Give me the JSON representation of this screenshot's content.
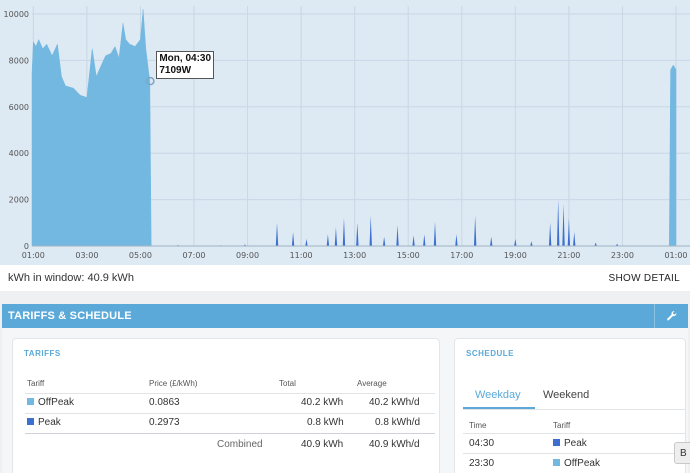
{
  "chart_data": {
    "type": "area",
    "title": "",
    "xlabel": "",
    "ylabel": "",
    "ylim": [
      0,
      10000
    ],
    "y_ticks": [
      "0",
      "2000",
      "4000",
      "6000",
      "8000",
      "10000"
    ],
    "x_ticks": [
      "01:00",
      "03:00",
      "05:00",
      "07:00",
      "09:00",
      "11:00",
      "13:00",
      "15:00",
      "17:00",
      "19:00",
      "21:00",
      "23:00",
      "01:00"
    ],
    "x_start_hour": 0.0,
    "x_end_hour": 25.0,
    "series": [
      {
        "color_offpeak": "#73b8e0",
        "color_peak": "#3d6fd0",
        "points": [
          [
            0.95,
            7400
          ],
          [
            1.0,
            8800
          ],
          [
            1.1,
            8600
          ],
          [
            1.2,
            8900
          ],
          [
            1.35,
            8500
          ],
          [
            1.5,
            8700
          ],
          [
            1.7,
            8200
          ],
          [
            1.9,
            8700
          ],
          [
            2.05,
            7300
          ],
          [
            2.2,
            6900
          ],
          [
            2.5,
            6800
          ],
          [
            2.75,
            6500
          ],
          [
            3.0,
            6400
          ],
          [
            3.2,
            8500
          ],
          [
            3.35,
            7300
          ],
          [
            3.5,
            7700
          ],
          [
            3.7,
            8200
          ],
          [
            3.9,
            8300
          ],
          [
            4.05,
            8600
          ],
          [
            4.2,
            8100
          ],
          [
            4.35,
            9600
          ],
          [
            4.45,
            8900
          ],
          [
            4.6,
            8700
          ],
          [
            4.8,
            8600
          ],
          [
            5.0,
            8900
          ],
          [
            5.1,
            10200
          ],
          [
            5.2,
            8500
          ],
          [
            5.35,
            7100
          ],
          [
            5.4,
            0
          ]
        ],
        "spikes_peak": [
          [
            6.4,
            50
          ],
          [
            8.0,
            40
          ],
          [
            8.9,
            70
          ],
          [
            10.1,
            1000
          ],
          [
            10.7,
            600
          ],
          [
            11.2,
            300
          ],
          [
            12.0,
            500
          ],
          [
            12.3,
            800
          ],
          [
            12.6,
            1200
          ],
          [
            13.1,
            1000
          ],
          [
            13.6,
            1300
          ],
          [
            14.1,
            400
          ],
          [
            14.6,
            900
          ],
          [
            15.2,
            450
          ],
          [
            15.6,
            500
          ],
          [
            16.0,
            1050
          ],
          [
            16.8,
            500
          ],
          [
            17.5,
            1300
          ],
          [
            18.1,
            400
          ],
          [
            19.0,
            300
          ],
          [
            19.6,
            200
          ],
          [
            20.3,
            1000
          ],
          [
            20.6,
            2000
          ],
          [
            20.8,
            1800
          ],
          [
            21.0,
            1200
          ],
          [
            21.2,
            600
          ],
          [
            22.0,
            150
          ],
          [
            22.8,
            100
          ]
        ],
        "tail": [
          [
            24.75,
            0
          ],
          [
            24.8,
            7600
          ],
          [
            24.9,
            7800
          ],
          [
            25.0,
            7600
          ]
        ]
      }
    ],
    "annotation": {
      "label_line1": "Mon, 04:30",
      "label_line2": "7109W",
      "x_hour": 5.37,
      "y": 7109
    }
  },
  "info": {
    "kwh_in_window": "kWh in window: 40.9 kWh",
    "show_detail": "SHOW DETAIL"
  },
  "panel": {
    "title": "TARIFFS & SCHEDULE",
    "edit_icon": "wrench-icon"
  },
  "tariffs": {
    "title": "TARIFFS",
    "headers": {
      "tariff": "Tariff",
      "price": "Price (£/kWh)",
      "total": "Total",
      "average": "Average"
    },
    "rows": [
      {
        "name": "OffPeak",
        "color": "#73b8e0",
        "price": "0.0863",
        "total": "40.2 kWh",
        "average": "40.2 kWh/d"
      },
      {
        "name": "Peak",
        "color": "#3d6fd0",
        "price": "0.2973",
        "total": "0.8 kWh",
        "average": "0.8 kWh/d"
      }
    ],
    "combined": {
      "label": "Combined",
      "total": "40.9 kWh",
      "average": "40.9 kWh/d"
    }
  },
  "schedule": {
    "title": "SCHEDULE",
    "tabs": [
      "Weekday",
      "Weekend"
    ],
    "active_tab": "Weekday",
    "headers": {
      "time": "Time",
      "tariff": "Tariff"
    },
    "rows": [
      {
        "time": "04:30",
        "tariff": "Peak",
        "color": "#3d6fd0"
      },
      {
        "time": "23:30",
        "tariff": "OffPeak",
        "color": "#73b8e0"
      }
    ]
  },
  "corner_button": "B"
}
